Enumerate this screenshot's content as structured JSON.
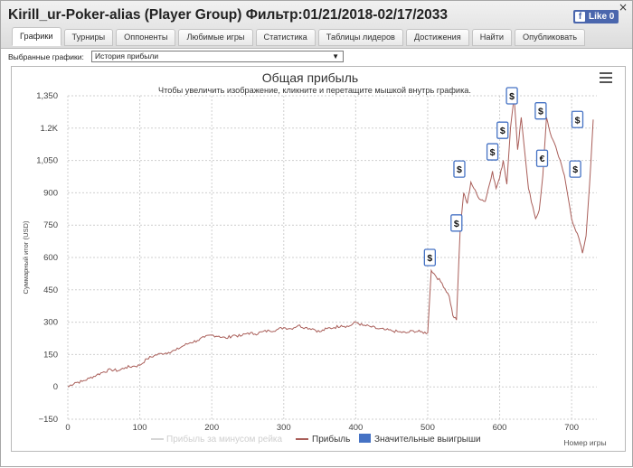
{
  "window": {
    "title": "Kirill_ur-Poker-alias (Player Group) Фильтр:01/21/2018-02/17/2033",
    "close_glyph": "×",
    "like_label": "Like 0",
    "like_icon": "f"
  },
  "tabs": [
    {
      "label": "Графики"
    },
    {
      "label": "Турниры"
    },
    {
      "label": "Оппоненты"
    },
    {
      "label": "Любимые игры"
    },
    {
      "label": "Статистика"
    },
    {
      "label": "Таблицы лидеров"
    },
    {
      "label": "Достижения"
    },
    {
      "label": "Найти"
    },
    {
      "label": "Опубликовать"
    }
  ],
  "selector": {
    "label": "Выбранные графики:",
    "value": "История прибыли",
    "arrow": "▼"
  },
  "chart_data": {
    "type": "line",
    "title": "Общая прибыль",
    "subtitle": "Чтобы увеличить изображение, кликните и перетащите мышкой внутрь графика.",
    "xlabel": "Номер игры",
    "ylabel": "Суммарный итог (USD)",
    "xlim": [
      0,
      735
    ],
    "ylim": [
      -150,
      1350
    ],
    "x_ticks": [
      "0",
      "100",
      "200",
      "300",
      "400",
      "500",
      "600",
      "700"
    ],
    "y_ticks": [
      "−150",
      "0",
      "150",
      "300",
      "450",
      "600",
      "750",
      "900",
      "1,050",
      "1.2K",
      "1,350"
    ],
    "grid": true,
    "legend_placement": "bottom-center",
    "series": [
      {
        "name": "Прибыль",
        "color": "#a95e59",
        "x": [
          0,
          10,
          20,
          30,
          40,
          50,
          60,
          70,
          80,
          90,
          100,
          110,
          120,
          130,
          140,
          150,
          160,
          170,
          180,
          190,
          200,
          210,
          220,
          230,
          240,
          250,
          260,
          270,
          280,
          290,
          300,
          310,
          320,
          330,
          340,
          350,
          360,
          370,
          380,
          390,
          400,
          410,
          420,
          430,
          440,
          450,
          460,
          470,
          480,
          490,
          500,
          505,
          510,
          520,
          530,
          535,
          540,
          545,
          550,
          555,
          560,
          570,
          580,
          590,
          595,
          600,
          605,
          610,
          615,
          620,
          625,
          630,
          640,
          650,
          655,
          660,
          665,
          670,
          680,
          690,
          700,
          710,
          715,
          720,
          725,
          730
        ],
        "y": [
          0,
          20,
          25,
          40,
          55,
          70,
          80,
          75,
          90,
          95,
          100,
          130,
          145,
          155,
          160,
          170,
          190,
          205,
          215,
          230,
          240,
          235,
          225,
          240,
          235,
          250,
          245,
          255,
          260,
          265,
          275,
          270,
          285,
          275,
          270,
          255,
          270,
          275,
          285,
          280,
          300,
          285,
          280,
          270,
          265,
          260,
          255,
          250,
          260,
          255,
          250,
          540,
          520,
          480,
          420,
          330,
          310,
          720,
          900,
          850,
          950,
          880,
          860,
          1000,
          920,
          970,
          1050,
          940,
          1200,
          1350,
          1100,
          1250,
          920,
          780,
          820,
          980,
          1250,
          1180,
          1090,
          980,
          780,
          690,
          620,
          700,
          940,
          1240
        ]
      },
      {
        "name": "Прибыль за минусом рейка",
        "color": "#d6d6d6",
        "hidden": true,
        "x": [],
        "y": []
      },
      {
        "name": "Значительные выигрыши",
        "color": "#4572c4",
        "type": "markers",
        "x": [
          503,
          540,
          544,
          590,
          604,
          617,
          657,
          659,
          705,
          708
        ],
        "y": [
          600,
          760,
          1010,
          1090,
          1190,
          1350,
          1280,
          1060,
          1010,
          1240
        ],
        "labels": [
          "$",
          "$",
          "$",
          "$",
          "$",
          "$",
          "$",
          "€",
          "$",
          "$"
        ]
      }
    ]
  }
}
